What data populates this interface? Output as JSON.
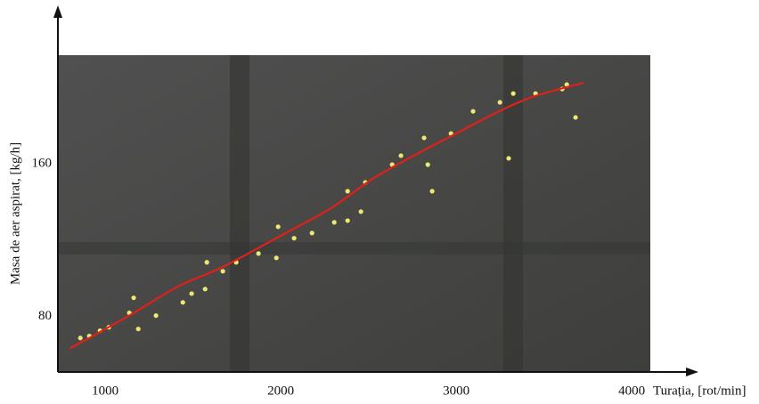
{
  "chart_data": {
    "type": "scatter",
    "x_label": "Turația, [rot/min]",
    "y_label": "Masa de aer aspirat, [kg/h]",
    "xlim": [
      730,
      4360
    ],
    "ylim": [
      51,
      241
    ],
    "xticks": [
      1000,
      2000,
      3000,
      4000
    ],
    "yticks": [
      80,
      160
    ],
    "grid": false,
    "series": [
      {
        "type": "scatter",
        "color": "#ece872",
        "x": [
          858,
          909,
          970,
          1020,
          1137,
          1162,
          1188,
          1289,
          1442,
          1492,
          1569,
          1579,
          1670,
          1746,
          1873,
          1975,
          1985,
          2076,
          2178,
          2305,
          2381,
          2457,
          2381,
          2482,
          2635,
          2685,
          2817,
          2838,
          2863,
          2970,
          3096,
          3249,
          3299,
          3325,
          3452,
          3604,
          3630,
          3680
        ],
        "y": [
          68.8,
          69.8,
          72.6,
          74.4,
          81.9,
          89.8,
          73.5,
          80.5,
          87.4,
          92,
          94.4,
          108.4,
          103.7,
          108.4,
          113,
          110.7,
          127,
          121,
          123.7,
          129.3,
          130.2,
          134.9,
          145.6,
          150.2,
          159.5,
          164.2,
          173.5,
          159.5,
          145.6,
          175.8,
          187.4,
          192.1,
          162.8,
          196.7,
          196.7,
          199.1,
          201.4,
          184.2
        ]
      },
      {
        "type": "line",
        "color": "#e0201a",
        "x": [
          797,
          909,
          1162,
          1416,
          1670,
          2000,
          2279,
          2533,
          2787,
          3000,
          3244,
          3447,
          3726
        ],
        "y": [
          63.3,
          68.8,
          81.9,
          95.8,
          106,
          122.3,
          136.3,
          152.6,
          165.6,
          175.8,
          187.4,
          195.3,
          202.3
        ]
      }
    ]
  }
}
